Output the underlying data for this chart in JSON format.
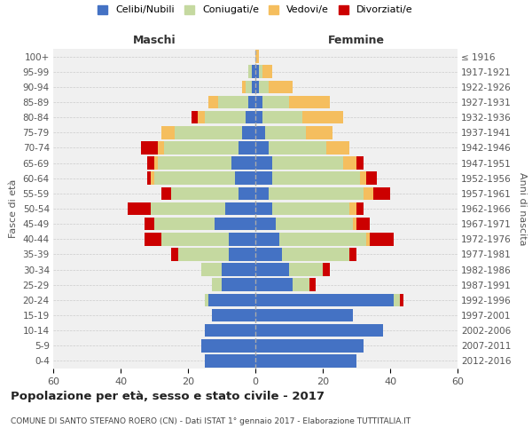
{
  "age_groups": [
    "0-4",
    "5-9",
    "10-14",
    "15-19",
    "20-24",
    "25-29",
    "30-34",
    "35-39",
    "40-44",
    "45-49",
    "50-54",
    "55-59",
    "60-64",
    "65-69",
    "70-74",
    "75-79",
    "80-84",
    "85-89",
    "90-94",
    "95-99",
    "100+"
  ],
  "birth_years": [
    "2012-2016",
    "2007-2011",
    "2002-2006",
    "1997-2001",
    "1992-1996",
    "1987-1991",
    "1982-1986",
    "1977-1981",
    "1972-1976",
    "1967-1971",
    "1962-1966",
    "1957-1961",
    "1952-1956",
    "1947-1951",
    "1942-1946",
    "1937-1941",
    "1932-1936",
    "1927-1931",
    "1922-1926",
    "1917-1921",
    "≤ 1916"
  ],
  "males": {
    "celibi": [
      15,
      16,
      15,
      13,
      14,
      10,
      10,
      8,
      8,
      12,
      9,
      5,
      6,
      7,
      5,
      4,
      3,
      2,
      1,
      1,
      0
    ],
    "coniugati": [
      0,
      0,
      0,
      0,
      1,
      3,
      6,
      15,
      20,
      18,
      22,
      20,
      24,
      22,
      22,
      20,
      12,
      9,
      2,
      1,
      0
    ],
    "vedovi": [
      0,
      0,
      0,
      0,
      0,
      0,
      0,
      0,
      0,
      0,
      0,
      0,
      1,
      1,
      2,
      4,
      2,
      3,
      1,
      0,
      0
    ],
    "divorziati": [
      0,
      0,
      0,
      0,
      0,
      0,
      0,
      2,
      5,
      3,
      7,
      3,
      1,
      2,
      5,
      0,
      2,
      0,
      0,
      0,
      0
    ]
  },
  "females": {
    "nubili": [
      30,
      32,
      38,
      29,
      41,
      11,
      10,
      8,
      7,
      6,
      5,
      4,
      5,
      5,
      4,
      3,
      2,
      2,
      1,
      1,
      0
    ],
    "coniugate": [
      0,
      0,
      0,
      0,
      2,
      5,
      10,
      20,
      26,
      23,
      23,
      28,
      26,
      21,
      17,
      12,
      12,
      8,
      3,
      1,
      0
    ],
    "vedove": [
      0,
      0,
      0,
      0,
      0,
      0,
      0,
      0,
      1,
      1,
      2,
      3,
      2,
      4,
      7,
      8,
      12,
      12,
      7,
      3,
      1
    ],
    "divorziate": [
      0,
      0,
      0,
      0,
      1,
      2,
      2,
      2,
      7,
      4,
      2,
      5,
      3,
      2,
      0,
      0,
      0,
      0,
      0,
      0,
      0
    ]
  },
  "colors": {
    "celibi": "#4472C4",
    "coniugati": "#C5D9A0",
    "vedovi": "#F5BE5E",
    "divorziati": "#CC0000"
  },
  "xlim": 60,
  "title": "Popolazione per età, sesso e stato civile - 2017",
  "subtitle": "COMUNE DI SANTO STEFANO ROERO (CN) - Dati ISTAT 1° gennaio 2017 - Elaborazione TUTTITALIA.IT",
  "xlabel_left": "Maschi",
  "xlabel_right": "Femmine",
  "ylabel_left": "Fasce di età",
  "ylabel_right": "Anni di nascita",
  "legend_labels": [
    "Celibi/Nubili",
    "Coniugati/e",
    "Vedovi/e",
    "Divorziati/e"
  ],
  "background_color": "#FFFFFF",
  "plot_bg_color": "#F0F0F0",
  "grid_color": "#CCCCCC"
}
